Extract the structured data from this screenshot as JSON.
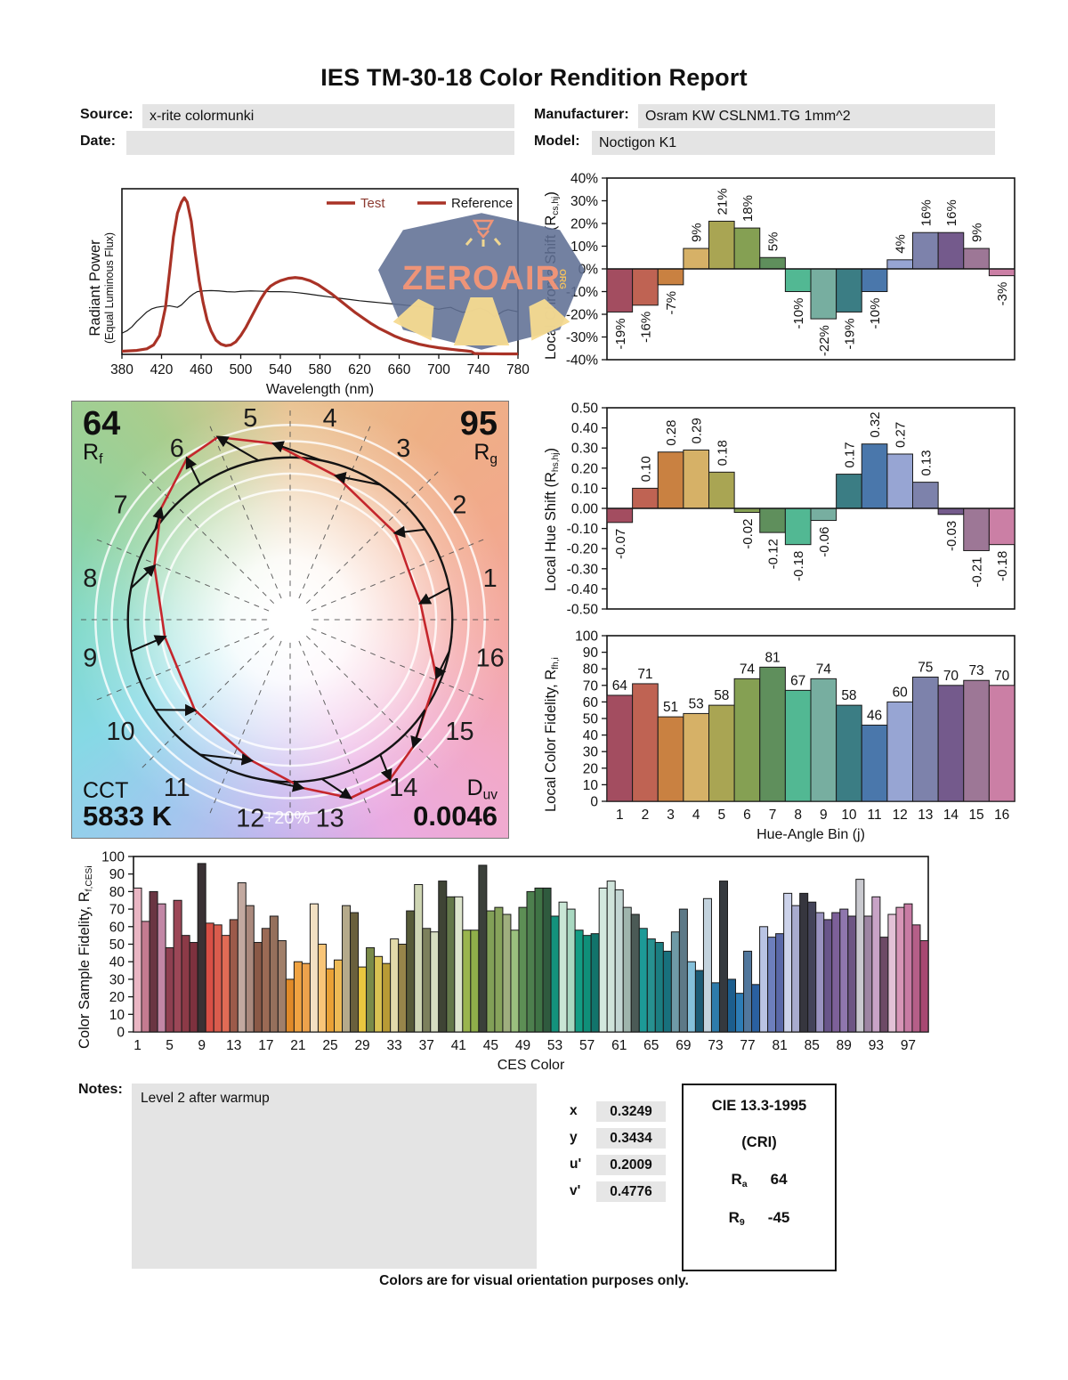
{
  "report": {
    "title": "IES TM-30-18 Color Rendition Report",
    "source_label": "Source:",
    "source_value": "x-rite colormunki",
    "manufacturer_label": "Manufacturer:",
    "manufacturer_value": "Osram KW CSLNM1.TG 1mm^2",
    "date_label": "Date:",
    "date_value": "",
    "model_label": "Model:",
    "model_value": "Noctigon K1",
    "notes_label": "Notes:",
    "notes_value": "Level 2 after warmup",
    "footer": "Colors are for visual orientation purposes only.",
    "watermark": "ZEROAIR",
    "watermark_org": "ORG"
  },
  "summary": {
    "rf_value": "64",
    "rf_label_main": "R",
    "rf_label_sub": "f",
    "rg_value": "95",
    "rg_label_main": "R",
    "rg_label_sub": "g",
    "cct_label": "CCT",
    "cct_value": "5833 K",
    "duv_label_main": "D",
    "duv_label_sub": "uv",
    "duv_value": "0.0046",
    "ring_label": "+20%"
  },
  "chromaticity": {
    "rows": [
      {
        "label": "x",
        "value": "0.3249"
      },
      {
        "label": "y",
        "value": "0.3434"
      },
      {
        "label": "u'",
        "value": "0.2009"
      },
      {
        "label": "v'",
        "value": "0.4776"
      }
    ]
  },
  "cri_box": {
    "title": "CIE 13.3-1995",
    "subtitle": "(CRI)",
    "rows": [
      {
        "label_main": "R",
        "label_sub": "a",
        "value": "64"
      },
      {
        "label_main": "R",
        "label_sub": "9",
        "value": "-45"
      }
    ]
  },
  "bin_colors": [
    "#a34d60",
    "#bf6353",
    "#c98141",
    "#d6b167",
    "#a9a553",
    "#85a053",
    "#5f8f5c",
    "#52b893",
    "#77aea0",
    "#3b7d84",
    "#4a77ab",
    "#97a5d3",
    "#7d82ab",
    "#745a8c",
    "#9d7796",
    "#cb7fa5"
  ],
  "chart_data": [
    {
      "id": "spd",
      "type": "line",
      "xlabel": "Wavelength (nm)",
      "ylabel_line1": "Radiant Power",
      "ylabel_line2": "(Equal Luminous Flux)",
      "xlim": [
        380,
        780
      ],
      "xtick_step": 40,
      "grid": false,
      "legend_position": "top-right",
      "legend": [
        {
          "label": "Test",
          "swatch_color": "#a93226",
          "text_color": "#8c3a30"
        },
        {
          "label": "Reference",
          "swatch_color": "#a93226",
          "text_color": "#161616"
        }
      ],
      "series": [
        {
          "name": "Reference",
          "color": "#1a1a1a",
          "width": 1.2,
          "points": [
            [
              380,
              0.135
            ],
            [
              385,
              0.15
            ],
            [
              390,
              0.175
            ],
            [
              395,
              0.21
            ],
            [
              400,
              0.24
            ],
            [
              405,
              0.27
            ],
            [
              410,
              0.29
            ],
            [
              415,
              0.3
            ],
            [
              420,
              0.305
            ],
            [
              428,
              0.31
            ],
            [
              432,
              0.305
            ],
            [
              436,
              0.3
            ],
            [
              440,
              0.315
            ],
            [
              444,
              0.34
            ],
            [
              448,
              0.365
            ],
            [
              452,
              0.385
            ],
            [
              456,
              0.4
            ],
            [
              462,
              0.405
            ],
            [
              470,
              0.407
            ],
            [
              478,
              0.405
            ],
            [
              486,
              0.4
            ],
            [
              494,
              0.398
            ],
            [
              500,
              0.402
            ],
            [
              510,
              0.405
            ],
            [
              520,
              0.403
            ],
            [
              530,
              0.4
            ],
            [
              540,
              0.4
            ],
            [
              550,
              0.398
            ],
            [
              558,
              0.393
            ],
            [
              566,
              0.387
            ],
            [
              574,
              0.38
            ],
            [
              582,
              0.373
            ],
            [
              590,
              0.366
            ],
            [
              600,
              0.358
            ],
            [
              610,
              0.35
            ],
            [
              620,
              0.342
            ],
            [
              630,
              0.336
            ],
            [
              640,
              0.33
            ],
            [
              650,
              0.324
            ],
            [
              660,
              0.318
            ],
            [
              668,
              0.313
            ],
            [
              676,
              0.308
            ],
            [
              684,
              0.3
            ],
            [
              692,
              0.295
            ],
            [
              700,
              0.288
            ],
            [
              706,
              0.295
            ],
            [
              712,
              0.3
            ],
            [
              718,
              0.282
            ],
            [
              724,
              0.268
            ],
            [
              730,
              0.272
            ],
            [
              736,
              0.285
            ],
            [
              742,
              0.295
            ],
            [
              748,
              0.28
            ],
            [
              752,
              0.262
            ],
            [
              756,
              0.24
            ],
            [
              760,
              0.255
            ],
            [
              765,
              0.275
            ],
            [
              770,
              0.285
            ],
            [
              775,
              0.278
            ],
            [
              780,
              0.272
            ]
          ]
        },
        {
          "name": "Test",
          "color": "#a93226",
          "width": 3.2,
          "points": [
            [
              380,
              0.02
            ],
            [
              395,
              0.025
            ],
            [
              405,
              0.035
            ],
            [
              412,
              0.06
            ],
            [
              418,
              0.12
            ],
            [
              424,
              0.3
            ],
            [
              428,
              0.52
            ],
            [
              432,
              0.75
            ],
            [
              436,
              0.9
            ],
            [
              440,
              0.97
            ],
            [
              443,
              1.0
            ],
            [
              446,
              0.97
            ],
            [
              450,
              0.85
            ],
            [
              454,
              0.65
            ],
            [
              458,
              0.47
            ],
            [
              462,
              0.33
            ],
            [
              466,
              0.22
            ],
            [
              470,
              0.15
            ],
            [
              475,
              0.09
            ],
            [
              480,
              0.065
            ],
            [
              485,
              0.055
            ],
            [
              490,
              0.06
            ],
            [
              495,
              0.08
            ],
            [
              500,
              0.12
            ],
            [
              505,
              0.17
            ],
            [
              510,
              0.23
            ],
            [
              515,
              0.29
            ],
            [
              520,
              0.35
            ],
            [
              525,
              0.4
            ],
            [
              530,
              0.435
            ],
            [
              535,
              0.455
            ],
            [
              540,
              0.47
            ],
            [
              548,
              0.485
            ],
            [
              555,
              0.49
            ],
            [
              562,
              0.485
            ],
            [
              570,
              0.47
            ],
            [
              578,
              0.445
            ],
            [
              585,
              0.415
            ],
            [
              592,
              0.385
            ],
            [
              600,
              0.345
            ],
            [
              608,
              0.305
            ],
            [
              616,
              0.265
            ],
            [
              624,
              0.23
            ],
            [
              632,
              0.195
            ],
            [
              640,
              0.165
            ],
            [
              648,
              0.14
            ],
            [
              656,
              0.115
            ],
            [
              664,
              0.095
            ],
            [
              672,
              0.08
            ],
            [
              680,
              0.065
            ],
            [
              690,
              0.052
            ],
            [
              700,
              0.042
            ],
            [
              710,
              0.034
            ],
            [
              720,
              0.027
            ],
            [
              728,
              0.022
            ],
            [
              733,
              0.018
            ],
            [
              736,
              0.006
            ],
            [
              740,
              0.005
            ],
            [
              750,
              0.004
            ],
            [
              765,
              0.003
            ],
            [
              780,
              0.003
            ]
          ]
        }
      ]
    },
    {
      "id": "local_chroma_shift",
      "type": "bar",
      "ylabel_pre": "Local Chroma Shift (R",
      "ylabel_sub": "cs,hj",
      "ylabel_post": ")",
      "ylim": [
        -40,
        40
      ],
      "ytick_step": 10,
      "unit": "%",
      "categories": [
        1,
        2,
        3,
        4,
        5,
        6,
        7,
        8,
        9,
        10,
        11,
        12,
        13,
        14,
        15,
        16
      ],
      "values": [
        -19,
        -16,
        -7,
        9,
        21,
        18,
        5,
        -10,
        -22,
        -19,
        -10,
        4,
        16,
        16,
        9,
        -3
      ]
    },
    {
      "id": "local_hue_shift",
      "type": "bar",
      "ylabel_pre": "Local Hue Shift (R",
      "ylabel_sub": "hs,hj",
      "ylabel_post": ")",
      "ylim": [
        -0.5,
        0.5
      ],
      "ytick_step": 0.1,
      "categories": [
        1,
        2,
        3,
        4,
        5,
        6,
        7,
        8,
        9,
        10,
        11,
        12,
        13,
        14,
        15,
        16
      ],
      "values": [
        -0.07,
        0.1,
        0.28,
        0.29,
        0.18,
        -0.02,
        -0.12,
        -0.18,
        -0.06,
        0.17,
        0.32,
        0.27,
        0.13,
        -0.03,
        -0.21,
        -0.18
      ]
    },
    {
      "id": "local_color_fidelity",
      "type": "bar",
      "ylabel_pre": "Local Color Fidelity, R",
      "ylabel_sub": "fh,i",
      "ylabel_post": "",
      "xlabel": "Hue-Angle Bin (j)",
      "ylim": [
        0,
        100
      ],
      "ytick_step": 10,
      "categories": [
        1,
        2,
        3,
        4,
        5,
        6,
        7,
        8,
        9,
        10,
        11,
        12,
        13,
        14,
        15,
        16
      ],
      "values": [
        64,
        71,
        51,
        53,
        58,
        74,
        81,
        67,
        74,
        58,
        46,
        60,
        75,
        70,
        73,
        70
      ]
    },
    {
      "id": "color_sample_fidelity",
      "type": "bar",
      "ylabel_pre": "Color Sample Fidelity, R",
      "ylabel_sub": "f,CESi",
      "ylabel_post": "",
      "xlabel": "CES Color",
      "ylim": [
        0,
        100
      ],
      "ytick_step": 10,
      "xtick_every": 4,
      "values": [
        82,
        63,
        80,
        73,
        48,
        75,
        55,
        51,
        96,
        62,
        61,
        55,
        64,
        85,
        72,
        51,
        59,
        66,
        52,
        30,
        40,
        39,
        73,
        50,
        36,
        41,
        72,
        68,
        37,
        48,
        43,
        39,
        53,
        50,
        69,
        84,
        59,
        57,
        86,
        77,
        77,
        58,
        58,
        95,
        69,
        71,
        67,
        58,
        71,
        80,
        82,
        82,
        66,
        74,
        70,
        58,
        55,
        56,
        82,
        86,
        81,
        71,
        67,
        59,
        53,
        51,
        46,
        57,
        70,
        40,
        35,
        76,
        28,
        86,
        30,
        22,
        46,
        27,
        60,
        54,
        56,
        79,
        72,
        79,
        74,
        68,
        64,
        68,
        70,
        66,
        87,
        66,
        77,
        54,
        67,
        71,
        73,
        61,
        52
      ],
      "colors": [
        "#eab6c4",
        "#c47b90",
        "#6a3542",
        "#c287a6",
        "#8e3f50",
        "#9c4757",
        "#8c3a47",
        "#7e313e",
        "#3a3134",
        "#d84f45",
        "#d95c4d",
        "#e06b55",
        "#9c5a4a",
        "#c2a9a0",
        "#aa897d",
        "#8a5947",
        "#9b6a55",
        "#95705c",
        "#a07f6a",
        "#e08a28",
        "#f0a342",
        "#eda24c",
        "#f2e0c2",
        "#f8c578",
        "#e9a135",
        "#edba55",
        "#b5aa8b",
        "#6a603d",
        "#e9c63f",
        "#7a8b49",
        "#d8c253",
        "#b89b35",
        "#e3daaa",
        "#97854a",
        "#565a38",
        "#ced5b3",
        "#7c805c",
        "#d6dcc1",
        "#3f4435",
        "#64784a",
        "#dde5cd",
        "#9ab54d",
        "#8fae4a",
        "#3b403a",
        "#82a057",
        "#87a35b",
        "#9fae7e",
        "#9ac07e",
        "#5d8f55",
        "#4d7f4e",
        "#3f7345",
        "#2f5a3e",
        "#14927c",
        "#c9e6d5",
        "#a9d8c1",
        "#129d84",
        "#0f8f79",
        "#12746b",
        "#d3e8de",
        "#cfe3da",
        "#c3d6d3",
        "#9fb5ad",
        "#4b5a56",
        "#1d9a97",
        "#279190",
        "#1b7e81",
        "#18717d",
        "#6f9aa6",
        "#5d7987",
        "#85c0da",
        "#1c5b75",
        "#c3d3de",
        "#2e7bab",
        "#35393e",
        "#1c5e8e",
        "#2d7cb5",
        "#51779d",
        "#2a60a0",
        "#b9c4e4",
        "#6d7fbd",
        "#5a68a8",
        "#ccd2ea",
        "#a8abce",
        "#36363e",
        "#44445a",
        "#9a93c0",
        "#69558a",
        "#7d6099",
        "#8f77ae",
        "#6d5684",
        "#c9c9cf",
        "#9d85a3",
        "#c8a3c6",
        "#6d4a66",
        "#e3c1d6",
        "#d795b7",
        "#c87ba4",
        "#b55f88",
        "#a84872"
      ]
    }
  ]
}
